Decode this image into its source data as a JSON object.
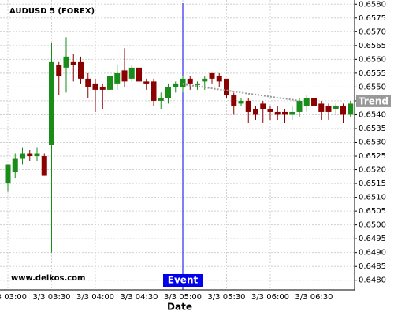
{
  "chart_data": {
    "type": "candlestick",
    "title": "AUDUSD 5 (FOREX)",
    "watermark": "www.delkos.com",
    "x_label": "Date",
    "categories": [
      "3/3 03:00",
      null,
      null,
      null,
      null,
      null,
      "3/3 03:30",
      null,
      null,
      null,
      null,
      null,
      "3/3 04:00",
      null,
      null,
      null,
      null,
      null,
      "3/3 04:30",
      null,
      null,
      null,
      null,
      null,
      "3/3 05:00",
      null,
      null,
      null,
      null,
      null,
      "3/3 05:30",
      null,
      null,
      null,
      null,
      null,
      "3/3 06:00",
      null,
      null,
      null,
      null,
      null,
      "3/3 06:30",
      null,
      null,
      null,
      null,
      null
    ],
    "open": [
      0.6515,
      0.6519,
      0.6524,
      0.6526,
      0.6525,
      0.6525,
      0.6529,
      0.6558,
      0.6557,
      0.6559,
      0.6559,
      0.6553,
      0.6551,
      0.655,
      0.6549,
      0.6551,
      0.6556,
      0.6553,
      0.6557,
      0.6552,
      0.6552,
      0.6545,
      0.6546,
      0.655,
      0.655,
      0.6553,
      0.6551,
      0.6552,
      0.6555,
      0.6554,
      0.6553,
      0.6547,
      0.6544,
      0.6545,
      0.6542,
      0.6544,
      0.6542,
      0.6541,
      0.6541,
      0.654,
      0.6541,
      0.6543,
      0.6546,
      0.6544,
      0.6543,
      0.6542,
      0.6543,
      0.654
    ],
    "high": [
      0.6522,
      0.6526,
      0.6528,
      0.6527,
      0.6528,
      0.6526,
      0.6566,
      0.6559,
      0.6568,
      0.6562,
      0.6561,
      0.6555,
      0.6553,
      0.6551,
      0.6556,
      0.6558,
      0.6564,
      0.6558,
      0.6558,
      0.6553,
      0.6553,
      0.6548,
      0.6551,
      0.6552,
      0.6554,
      0.6554,
      0.6552,
      0.6554,
      0.6555,
      0.6555,
      0.6553,
      0.6548,
      0.6546,
      0.6546,
      0.6543,
      0.6545,
      0.6543,
      0.6543,
      0.6542,
      0.6543,
      0.6546,
      0.6547,
      0.6547,
      0.6545,
      0.6544,
      0.6544,
      0.6544,
      0.6545
    ],
    "low": [
      0.6512,
      0.6517,
      0.6522,
      0.6523,
      0.6523,
      0.6518,
      0.649,
      0.6547,
      0.6548,
      0.6552,
      0.6551,
      0.6546,
      0.6541,
      0.6542,
      0.6548,
      0.6549,
      0.655,
      0.6552,
      0.6551,
      0.6549,
      0.6543,
      0.6542,
      0.6544,
      0.6548,
      0.6548,
      0.6549,
      0.6549,
      0.6549,
      0.6551,
      0.655,
      0.6546,
      0.654,
      0.6543,
      0.6537,
      0.6538,
      0.6537,
      0.6538,
      0.6538,
      0.6537,
      0.6538,
      0.6539,
      0.6541,
      0.6541,
      0.6538,
      0.6538,
      0.654,
      0.6537,
      0.6539
    ],
    "close": [
      0.6522,
      0.6524,
      0.6526,
      0.6525,
      0.6526,
      0.6518,
      0.6559,
      0.6554,
      0.6561,
      0.6558,
      0.6553,
      0.655,
      0.6549,
      0.6549,
      0.6554,
      0.6555,
      0.6552,
      0.6557,
      0.6552,
      0.6551,
      0.6545,
      0.6546,
      0.655,
      0.6551,
      0.6553,
      0.6551,
      0.6551,
      0.6553,
      0.6553,
      0.6552,
      0.6547,
      0.6543,
      0.6545,
      0.6541,
      0.654,
      0.6542,
      0.6541,
      0.654,
      0.654,
      0.6541,
      0.6545,
      0.6546,
      0.6543,
      0.6541,
      0.6541,
      0.6543,
      0.654,
      0.6544
    ],
    "up_color": "#1a8c1a",
    "down_color": "#8b0000",
    "trend": {
      "label": "Trend",
      "color": "#999999",
      "values": [
        null,
        null,
        null,
        null,
        null,
        null,
        null,
        null,
        null,
        null,
        null,
        null,
        null,
        null,
        null,
        null,
        null,
        null,
        null,
        null,
        null,
        null,
        null,
        null,
        0.6551,
        0.65506,
        0.65503,
        0.65499,
        0.65495,
        0.65491,
        0.65488,
        0.65484,
        0.6548,
        0.65476,
        0.65473,
        0.65469,
        0.65465,
        0.65461,
        0.65458,
        0.65454,
        0.6545,
        null,
        null,
        null,
        null,
        null,
        null,
        null
      ]
    },
    "event": {
      "label": "Event",
      "at": "3/3 05:00",
      "color": "#0000ee"
    },
    "ylim": [
      0.64765,
      0.65815
    ],
    "yticks": [
      {
        "value": 0.648,
        "label": "0.6480"
      },
      0.6485,
      {
        "value": 0.649,
        "label": "0.6490"
      },
      0.6495,
      {
        "value": 0.65,
        "label": "0.6500"
      },
      0.6505,
      {
        "value": 0.651,
        "label": "0.6510"
      },
      0.6515,
      {
        "value": 0.652,
        "label": "0.6520"
      },
      0.6525,
      {
        "value": 0.653,
        "label": "0.6530"
      },
      0.6535,
      {
        "value": 0.654,
        "label": "0.6540"
      },
      0.6545,
      {
        "value": 0.655,
        "label": "0.6550"
      },
      0.6555,
      {
        "value": 0.656,
        "label": "0.6560"
      },
      0.6565,
      {
        "value": 0.657,
        "label": "0.6570"
      },
      0.6575,
      {
        "value": 0.658,
        "label": "0.6580"
      }
    ],
    "grid": true
  }
}
